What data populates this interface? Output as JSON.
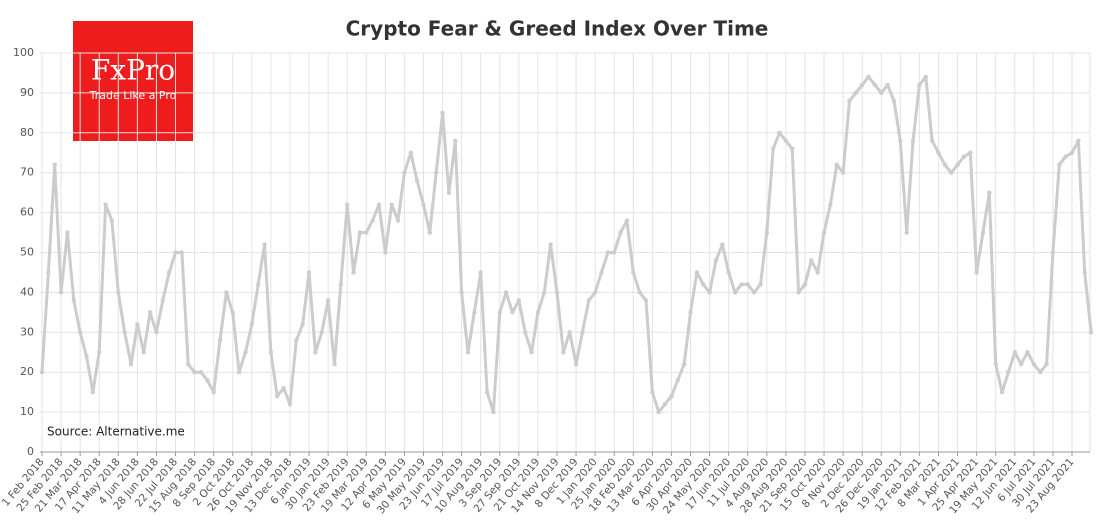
{
  "chart_data": {
    "type": "line",
    "title": "Crypto Fear & Greed Index Over Time",
    "source": "Source: Alternative.me",
    "logo": {
      "name": "FxPro",
      "tagline": "Trade Like a Pro"
    },
    "categories": [
      "1 Feb 2018",
      null,
      null,
      "25 Feb 2018",
      null,
      null,
      "21 Mar 2018",
      null,
      null,
      "17 Apr 2018",
      null,
      null,
      "11 May 2018",
      null,
      null,
      "4 Jun 2018",
      null,
      null,
      "28 Jun 2018",
      null,
      null,
      "22 Jul 2018",
      null,
      null,
      "15 Aug 2018",
      null,
      null,
      "8 Sep 2018",
      null,
      null,
      "2 Oct 2018",
      null,
      null,
      "26 Oct 2018",
      null,
      null,
      "19 Nov 2018",
      null,
      null,
      "13 Dec 2018",
      null,
      null,
      "6 Jan 2019",
      null,
      null,
      "30 Jan 2019",
      null,
      null,
      "23 Feb 2019",
      null,
      null,
      "19 Mar 2019",
      null,
      null,
      "12 Apr 2019",
      null,
      null,
      "6 May 2019",
      null,
      null,
      "30 May 2019",
      null,
      null,
      "23 Jun 2019",
      null,
      null,
      "17 Jul 2019",
      null,
      null,
      "10 Aug 2019",
      null,
      null,
      "3 Sep 2019",
      null,
      null,
      "27 Sep 2019",
      null,
      null,
      "21 Oct 2019",
      null,
      null,
      "14 Nov 2019",
      null,
      null,
      "8 Dec 2019",
      null,
      null,
      "1 Jan 2020",
      null,
      null,
      "25 Jan 2020",
      null,
      null,
      "18 Feb 2020",
      null,
      null,
      "13 Mar 2020",
      null,
      null,
      "6 Apr 2020",
      null,
      null,
      "30 Apr 2020",
      null,
      null,
      "24 May 2020",
      null,
      null,
      "17 Jun 2020",
      null,
      null,
      "11 Jul 2020",
      null,
      null,
      "4 Aug 2020",
      null,
      null,
      "28 Aug 2020",
      null,
      null,
      "21 Sep 2020",
      null,
      null,
      "15 Oct 2020",
      null,
      null,
      "8 Nov 2020",
      null,
      null,
      "2 Dec 2020",
      null,
      null,
      "26 Dec 2020",
      null,
      null,
      "19 Jan 2021",
      null,
      null,
      "12 Feb 2021",
      null,
      null,
      "8 Mar 2021",
      null,
      null,
      "1 Apr 2021",
      null,
      null,
      "25 Apr 2021",
      null,
      null,
      "19 May 2021",
      null,
      null,
      "12 Jun 2021",
      null,
      null,
      "6 Jul 2021",
      null,
      null,
      "30 Jul 2021",
      null,
      null,
      "23 Aug 2021",
      null,
      null,
      null
    ],
    "series": [
      {
        "name": "Fear & Greed Index",
        "color": "#cccccc",
        "values": [
          20,
          45,
          72,
          40,
          55,
          38,
          30,
          24,
          15,
          25,
          62,
          58,
          40,
          30,
          22,
          32,
          25,
          35,
          30,
          38,
          45,
          50,
          50,
          22,
          20,
          20,
          18,
          15,
          28,
          40,
          35,
          20,
          25,
          32,
          42,
          52,
          25,
          14,
          16,
          12,
          28,
          32,
          45,
          25,
          30,
          38,
          22,
          42,
          62,
          45,
          55,
          55,
          58,
          62,
          50,
          62,
          58,
          70,
          75,
          68,
          62,
          55,
          70,
          85,
          65,
          78,
          40,
          25,
          35,
          45,
          15,
          10,
          35,
          40,
          35,
          38,
          30,
          25,
          35,
          40,
          52,
          40,
          25,
          30,
          22,
          30,
          38,
          40,
          45,
          50,
          50,
          55,
          58,
          45,
          40,
          38,
          15,
          10,
          12,
          14,
          18,
          22,
          35,
          45,
          42,
          40,
          48,
          52,
          45,
          40,
          42,
          42,
          40,
          42,
          55,
          76,
          80,
          78,
          76,
          40,
          42,
          48,
          45,
          55,
          62,
          72,
          70,
          88,
          90,
          92,
          94,
          92,
          90,
          92,
          88,
          78,
          55,
          78,
          92,
          94,
          78,
          75,
          72,
          70,
          72,
          74,
          75,
          45,
          55,
          65,
          22,
          15,
          20,
          25,
          22,
          25,
          22,
          20,
          22,
          50,
          72,
          74,
          75,
          78,
          45,
          30
        ]
      }
    ],
    "ylim": [
      0,
      100
    ],
    "yticks": [
      0,
      10,
      20,
      30,
      40,
      50,
      60,
      70,
      80,
      90,
      100
    ],
    "grid": true
  }
}
